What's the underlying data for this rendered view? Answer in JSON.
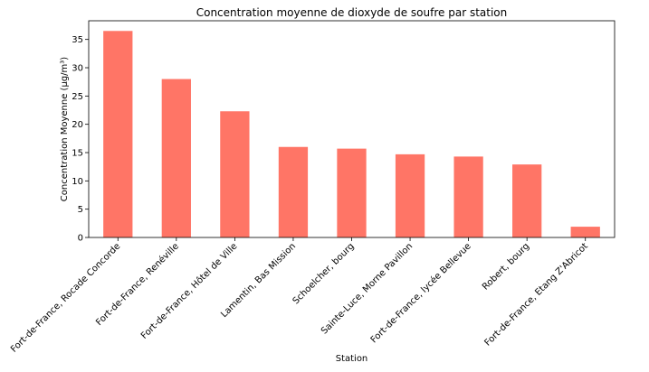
{
  "chart_data": {
    "type": "bar",
    "title": "Concentration moyenne de dioxyde de soufre par station",
    "xlabel": "Station",
    "ylabel": "Concentration Moyenne (µg/m³)",
    "categories": [
      "Fort-de-France, Rocade Concorde",
      "Fort-de-France, Renéville",
      "Fort-de-France, Hôtel de Ville",
      "Lamentin, Bas Mission",
      "Schoelcher, bourg",
      "Sainte-Luce, Morne Pavillon",
      "Fort-de-France, lycée Bellevue",
      "Robert, bourg",
      "Fort-de-France, Etang Z'Abricot"
    ],
    "values": [
      36.5,
      28.0,
      22.3,
      16.0,
      15.7,
      14.7,
      14.3,
      12.9,
      1.9
    ],
    "ylim": [
      0,
      38.3
    ],
    "yticks": [
      0,
      5,
      10,
      15,
      20,
      25,
      30,
      35
    ],
    "bar_color": "#ff7566",
    "grid": false,
    "legend": "none"
  }
}
